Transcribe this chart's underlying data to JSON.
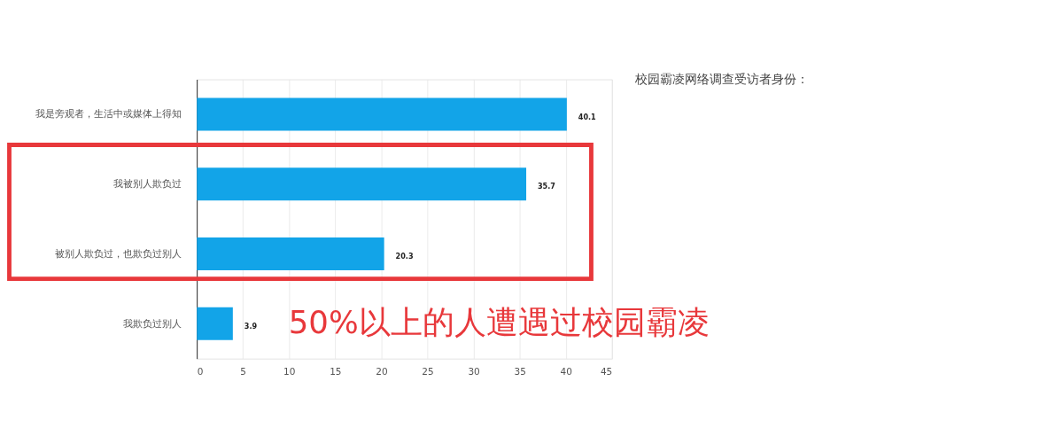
{
  "chart_data": {
    "type": "bar",
    "orientation": "horizontal",
    "title": "校园霸凌网络调查受访者身份：",
    "categories": [
      "我是旁观者，生活中或媒体上得知",
      "我被别人欺负过",
      "被别人欺负过，也欺负过别人",
      "我欺负过别人"
    ],
    "values": [
      40.1,
      35.7,
      20.3,
      3.9
    ],
    "color": "#12a4e8",
    "xlim": [
      0,
      45
    ],
    "xticks": [
      0,
      5,
      10,
      15,
      20,
      25,
      30,
      35,
      40,
      45
    ],
    "grid": "x",
    "data_labels": true,
    "annotations": [
      "50%以上的人遭遇过校园霸凌"
    ]
  }
}
